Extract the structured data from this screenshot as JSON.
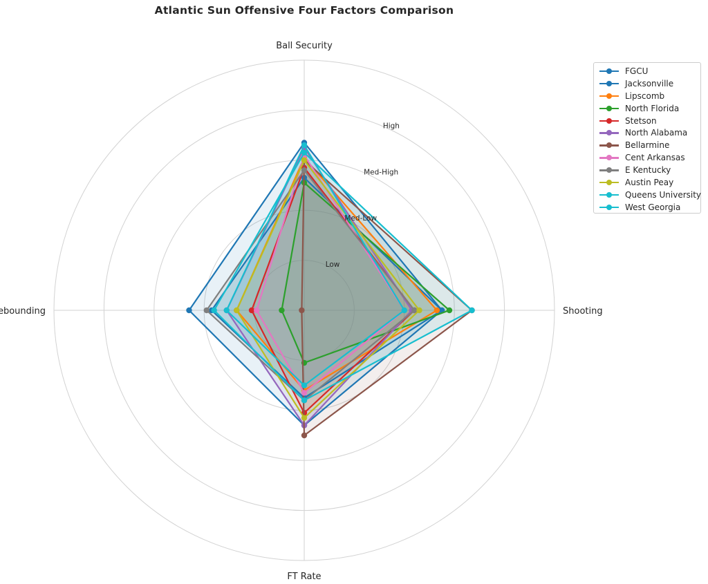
{
  "chart_data": {
    "type": "radar",
    "title": "Atlantic Sun Offensive Four Factors Comparison",
    "axes": [
      "Ball Security",
      "Shooting",
      "FT Rate",
      "Off Rebounding"
    ],
    "radial_ticks": [
      {
        "value": 1,
        "label": "Low"
      },
      {
        "value": 2,
        "label": "Med-Low"
      },
      {
        "value": 3,
        "label": "Med-High"
      },
      {
        "value": 4,
        "label": "High"
      },
      {
        "value": 5,
        "label": ""
      }
    ],
    "rmax": 5,
    "grid": true,
    "legend_position": "upper-right-outside",
    "series": [
      {
        "name": "FGCU",
        "color": "#1f77b4",
        "values": [
          3.35,
          2.75,
          2.3,
          2.3
        ]
      },
      {
        "name": "Jacksonville",
        "color": "#1f77b4",
        "values": [
          2.65,
          2.75,
          1.75,
          1.85
        ]
      },
      {
        "name": "Lipscomb",
        "color": "#ff7f0e",
        "values": [
          3.05,
          2.65,
          1.6,
          1.35
        ]
      },
      {
        "name": "North Florida",
        "color": "#2ca02c",
        "values": [
          2.55,
          2.9,
          1.05,
          0.45
        ]
      },
      {
        "name": "Stetson",
        "color": "#d62728",
        "values": [
          2.85,
          2.2,
          2.05,
          1.05
        ]
      },
      {
        "name": "North Alabama",
        "color": "#9467bd",
        "values": [
          3.25,
          2.15,
          2.3,
          1.55
        ]
      },
      {
        "name": "Bellarmine",
        "color": "#8c564b",
        "values": [
          3.0,
          3.35,
          2.5,
          0.05
        ]
      },
      {
        "name": "Cent Arkansas",
        "color": "#e377c2",
        "values": [
          3.1,
          2.0,
          1.65,
          0.95
        ]
      },
      {
        "name": "E Kentucky",
        "color": "#7f7f7f",
        "values": [
          2.8,
          2.2,
          1.8,
          1.95
        ]
      },
      {
        "name": "Austin Peay",
        "color": "#bcbd22",
        "values": [
          3.0,
          2.3,
          2.15,
          1.35
        ]
      },
      {
        "name": "Queens University",
        "color": "#17becf",
        "values": [
          3.15,
          3.35,
          1.8,
          1.8
        ]
      },
      {
        "name": "West Georgia",
        "color": "#17becf",
        "values": [
          3.3,
          2.0,
          1.5,
          1.55
        ]
      }
    ]
  }
}
